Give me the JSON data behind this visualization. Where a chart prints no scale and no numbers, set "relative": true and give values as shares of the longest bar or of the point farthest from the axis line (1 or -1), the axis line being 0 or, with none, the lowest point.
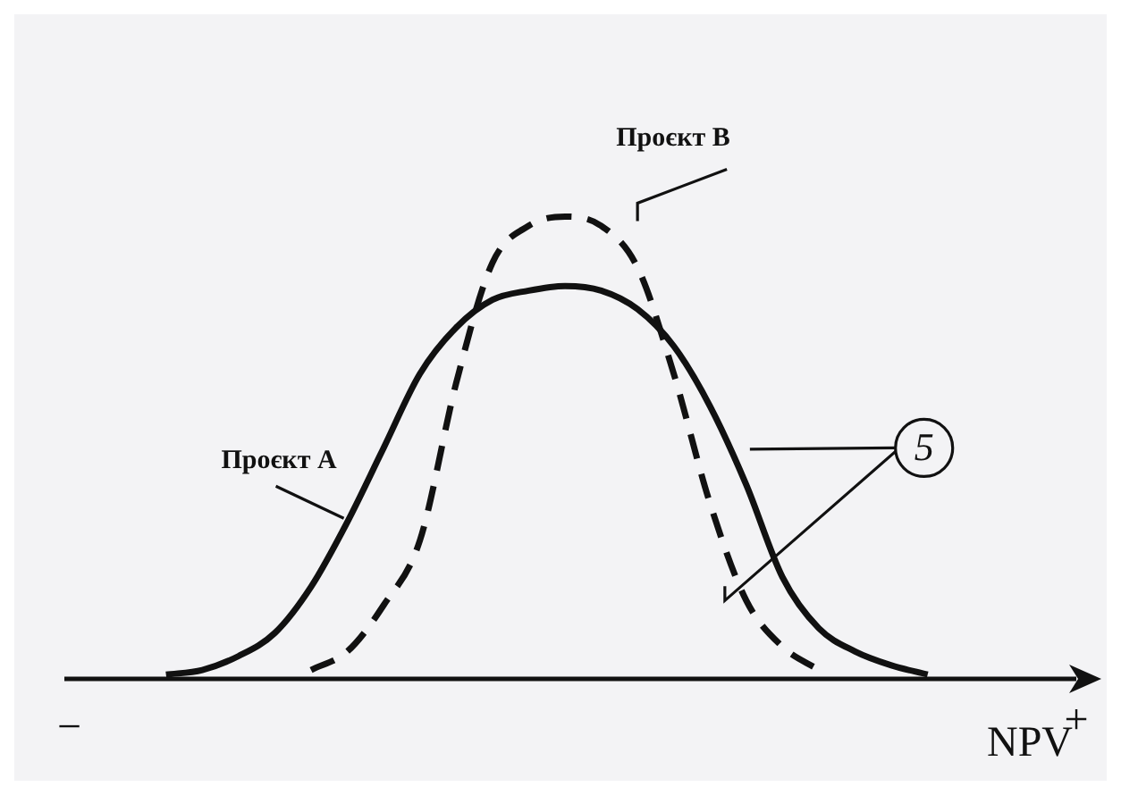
{
  "chart_data": {
    "type": "line",
    "relative": true,
    "xlabel": "NPV",
    "legend": false,
    "grid": false,
    "tick_labels": false,
    "marker": "none",
    "categories": [
      null,
      null,
      null,
      null,
      null,
      null,
      null,
      null,
      null,
      null,
      null,
      null,
      null,
      null,
      null,
      null,
      null,
      null,
      null,
      null,
      null,
      null,
      null,
      null,
      null,
      null,
      null,
      null,
      null
    ],
    "series": [
      {
        "name": "Проєкт А",
        "color": "#111111",
        "line_style": "solid",
        "values": [
          null,
          null,
          null,
          0.01,
          0.02,
          0.05,
          0.1,
          0.2,
          0.34,
          0.5,
          0.66,
          0.76,
          0.82,
          0.84,
          0.85,
          0.84,
          0.8,
          0.72,
          0.59,
          0.42,
          0.22,
          0.11,
          0.06,
          0.03,
          0.01,
          null,
          null,
          null,
          null
        ]
      },
      {
        "name": "Проєкт В",
        "color": "#111111",
        "line_style": "dashed",
        "values": [
          null,
          null,
          null,
          null,
          null,
          null,
          null,
          0.02,
          0.06,
          0.16,
          0.3,
          0.64,
          0.9,
          0.98,
          1,
          0.98,
          0.89,
          0.66,
          0.38,
          0.17,
          0.07,
          0.02,
          null,
          null,
          null,
          null,
          null,
          null,
          null
        ]
      }
    ],
    "annotations": [
      "5",
      "−",
      "+"
    ]
  }
}
